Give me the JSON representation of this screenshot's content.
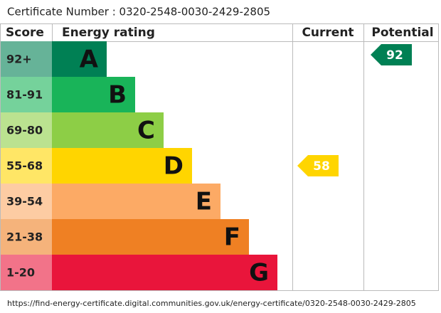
{
  "header": {
    "certificate": "Certificate Number : 0320-2548-0030-2429-2805"
  },
  "columns": [
    "Score",
    "Energy rating",
    "Current",
    "Potential"
  ],
  "bands": [
    {
      "score": "92+",
      "letter": "A",
      "color": "#008054",
      "score_color": "#66b398"
    },
    {
      "score": "81-91",
      "letter": "B",
      "color": "#19b459",
      "score_color": "#75d29b"
    },
    {
      "score": "69-80",
      "letter": "C",
      "color": "#8dce46",
      "score_color": "#bbe290"
    },
    {
      "score": "55-68",
      "letter": "D",
      "color": "#ffd500",
      "score_color": "#ffe666"
    },
    {
      "score": "39-54",
      "letter": "E",
      "color": "#fcaa65",
      "score_color": "#fdcca3"
    },
    {
      "score": "21-38",
      "letter": "F",
      "color": "#ef8023",
      "score_color": "#f5b37b"
    },
    {
      "score": "1-20",
      "letter": "G",
      "color": "#e9153b",
      "score_color": "#f27389"
    }
  ],
  "current": {
    "value": 58,
    "color": "#ffd500"
  },
  "potential": {
    "value": 92,
    "color": "#008054"
  },
  "footer": {
    "url": "https://find-energy-certificate.digital.communities.gov.uk/energy-certificate/0320-2548-0030-2429-2805"
  }
}
